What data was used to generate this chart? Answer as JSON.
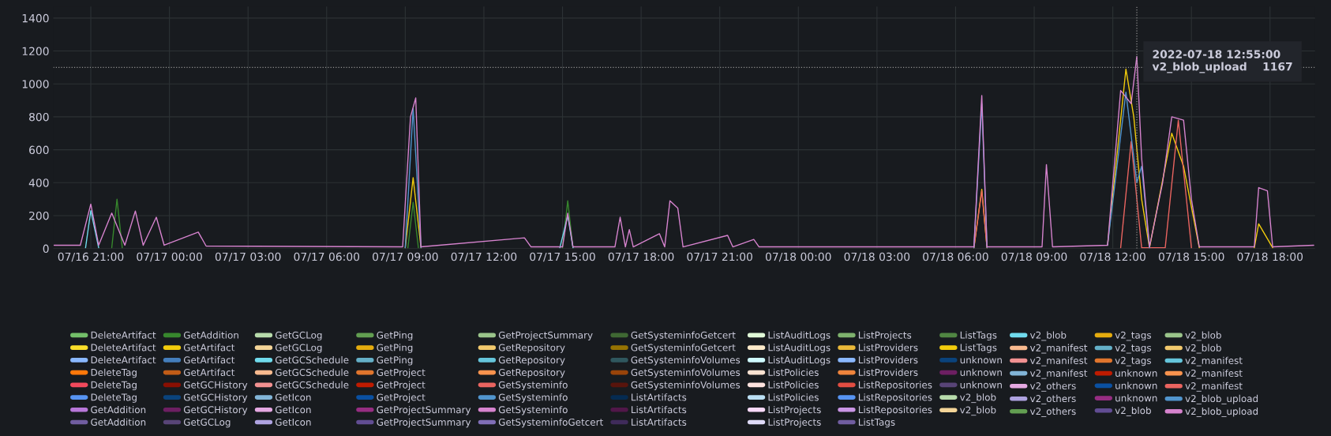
{
  "chart_data": {
    "type": "line",
    "xlim": [
      "2022-07-16T19:34",
      "2022-07-18T19:43"
    ],
    "xticks": [
      {
        "value": "2022-07-16T21:00",
        "label": "07/16 21:00"
      },
      {
        "value": "2022-07-17T00:00",
        "label": "07/17 00:00"
      },
      {
        "value": "2022-07-17T03:00",
        "label": "07/17 03:00"
      },
      {
        "value": "2022-07-17T06:00",
        "label": "07/17 06:00"
      },
      {
        "value": "2022-07-17T09:00",
        "label": "07/17 09:00"
      },
      {
        "value": "2022-07-17T12:00",
        "label": "07/17 12:00"
      },
      {
        "value": "2022-07-17T15:00",
        "label": "07/17 15:00"
      },
      {
        "value": "2022-07-17T18:00",
        "label": "07/17 18:00"
      },
      {
        "value": "2022-07-17T21:00",
        "label": "07/17 21:00"
      },
      {
        "value": "2022-07-18T00:00",
        "label": "07/18 00:00"
      },
      {
        "value": "2022-07-18T03:00",
        "label": "07/18 03:00"
      },
      {
        "value": "2022-07-18T06:00",
        "label": "07/18 06:00"
      },
      {
        "value": "2022-07-18T09:00",
        "label": "07/18 09:00"
      },
      {
        "value": "2022-07-18T12:00",
        "label": "07/18 12:00"
      },
      {
        "value": "2022-07-18T15:00",
        "label": "07/18 15:00"
      },
      {
        "value": "2022-07-18T18:00",
        "label": "07/18 18:00"
      }
    ],
    "ylim": [
      0,
      1470
    ],
    "yticks": [
      0,
      200,
      400,
      600,
      800,
      1000,
      1200,
      1400
    ],
    "grid": true,
    "legend": "bottom",
    "marker": "none",
    "line_style": "solid",
    "ref_lines": [
      {
        "axis": "y",
        "value": 1100,
        "color": "#8e8e8e",
        "line_style": "dotted"
      },
      {
        "axis": "x",
        "value": "2022-07-18T12:55",
        "color": "#8e8e8e",
        "line_style": "dotted"
      }
    ],
    "annotations": [
      {
        "text": "2022-07-18 12:55:00\nv2_blob_upload    1167",
        "x": "2022-07-18T12:55",
        "y": 1167
      }
    ],
    "series": [
      {
        "name": "DeleteArtifact",
        "color": "#73bf69",
        "values": [
          null
        ]
      },
      {
        "name": "DeleteArtifact",
        "color": "#fade2a",
        "values": [
          null
        ]
      },
      {
        "name": "DeleteArtifact",
        "color": "#8ab8ff",
        "values": [
          null
        ]
      },
      {
        "name": "DeleteTag",
        "color": "#ff780a",
        "values": [
          null
        ]
      },
      {
        "name": "DeleteTag",
        "color": "#f2495c",
        "values": [
          null
        ]
      },
      {
        "name": "DeleteTag",
        "color": "#5794f2",
        "values": [
          null
        ]
      },
      {
        "name": "GetAddition",
        "color": "#b877d9",
        "values": [
          null
        ]
      },
      {
        "name": "GetAddition",
        "color": "#705da0",
        "values": [
          null
        ]
      },
      {
        "name": "GetAddition",
        "color": "#37872d",
        "x": [
          "2022-07-16T21:48",
          "2022-07-16T22:00",
          "2022-07-16T22:12",
          "2022-07-17T03:00",
          "2022-07-17T09:06",
          "2022-07-17T09:18",
          "2022-07-17T09:30",
          "2022-07-17T12:00",
          "2022-07-17T15:00",
          "2022-07-17T15:12",
          "2022-07-17T15:24"
        ],
        "values": [
          5,
          300,
          5,
          null,
          5,
          280,
          5,
          null,
          5,
          290,
          5
        ]
      },
      {
        "name": "GetArtifact",
        "color": "#f2cc0c",
        "x": [
          "2022-07-17T09:00",
          "2022-07-17T09:18",
          "2022-07-17T09:36",
          "2022-07-17T12:00",
          "2022-07-18T06:42",
          "2022-07-18T07:00",
          "2022-07-18T07:12",
          "2022-07-18T09:00",
          "2022-07-18T11:48",
          "2022-07-18T12:30",
          "2022-07-18T12:48",
          "2022-07-18T13:06",
          "2022-07-18T13:24",
          "2022-07-18T14:15",
          "2022-07-18T14:42",
          "2022-07-18T15:18",
          "2022-07-18T16:00",
          "2022-07-18T17:24",
          "2022-07-18T17:34",
          "2022-07-18T18:06"
        ],
        "values": [
          5,
          430,
          5,
          null,
          5,
          360,
          5,
          null,
          20,
          1090,
          800,
          300,
          5,
          700,
          500,
          5,
          null,
          5,
          150,
          5
        ]
      },
      {
        "name": "GetArtifact",
        "color": "#447ebc",
        "values": [
          null
        ]
      },
      {
        "name": "GetArtifact",
        "color": "#c15c17",
        "values": [
          null
        ]
      },
      {
        "name": "GetGCHistory",
        "color": "#890f02",
        "values": [
          null
        ]
      },
      {
        "name": "GetGCHistory",
        "color": "#0a437c",
        "values": [
          null
        ]
      },
      {
        "name": "GetGCHistory",
        "color": "#6d1f62",
        "values": [
          null
        ]
      },
      {
        "name": "GetGCLog",
        "color": "#584477",
        "values": [
          null
        ]
      },
      {
        "name": "GetGCLog",
        "color": "#b7dbab",
        "values": [
          null
        ]
      },
      {
        "name": "GetGCLog",
        "color": "#f4d598",
        "values": [
          null
        ]
      },
      {
        "name": "GetGCSchedule",
        "color": "#70dbed",
        "x": [
          "2022-07-16T20:48",
          "2022-07-16T21:00",
          "2022-07-16T21:18",
          "2022-07-17T03:00",
          "2022-07-17T14:54",
          "2022-07-17T15:12",
          "2022-07-17T15:24"
        ],
        "values": [
          5,
          230,
          5,
          null,
          5,
          200,
          5
        ]
      },
      {
        "name": "GetGCSchedule",
        "color": "#f9ba8f",
        "values": [
          null
        ]
      },
      {
        "name": "GetGCSchedule",
        "color": "#f29191",
        "values": [
          null
        ]
      },
      {
        "name": "GetIcon",
        "color": "#82b5d8",
        "values": [
          null
        ]
      },
      {
        "name": "GetIcon",
        "color": "#e5a8e2",
        "values": [
          null
        ]
      },
      {
        "name": "GetIcon",
        "color": "#aea2e0",
        "values": [
          null
        ]
      },
      {
        "name": "GetPing",
        "color": "#629e51",
        "values": [
          null
        ]
      },
      {
        "name": "GetPing",
        "color": "#e5ac0e",
        "values": [
          null
        ]
      },
      {
        "name": "GetPing",
        "color": "#64b0c8",
        "values": [
          null
        ]
      },
      {
        "name": "GetProject",
        "color": "#e0752d",
        "values": [
          null
        ]
      },
      {
        "name": "GetProject",
        "color": "#bf1b00",
        "values": [
          null
        ]
      },
      {
        "name": "GetProject",
        "color": "#0a50a1",
        "values": [
          null
        ]
      },
      {
        "name": "GetProjectSummary",
        "color": "#962d82",
        "values": [
          null
        ]
      },
      {
        "name": "GetProjectSummary",
        "color": "#614d93",
        "values": [
          null
        ]
      },
      {
        "name": "GetProjectSummary",
        "color": "#9ac48a",
        "values": [
          null
        ]
      },
      {
        "name": "GetRepository",
        "color": "#f2c96d",
        "values": [
          null
        ]
      },
      {
        "name": "GetRepository",
        "color": "#65c5db",
        "values": [
          null
        ]
      },
      {
        "name": "GetRepository",
        "color": "#f9934e",
        "values": [
          null
        ]
      },
      {
        "name": "GetSysteminfo",
        "color": "#ea6460",
        "x": [
          "2022-07-18T06:42",
          "2022-07-18T07:00",
          "2022-07-18T07:12",
          "2022-07-18T09:00",
          "2022-07-18T12:18",
          "2022-07-18T12:42",
          "2022-07-18T13:06",
          "2022-07-18T14:00",
          "2022-07-18T14:30",
          "2022-07-18T15:00"
        ],
        "values": [
          5,
          350,
          5,
          null,
          5,
          650,
          5,
          5,
          780,
          5
        ]
      },
      {
        "name": "GetSysteminfo",
        "color": "#5195ce",
        "values": [
          null
        ]
      },
      {
        "name": "GetSysteminfo",
        "color": "#d683ce",
        "values": [
          null
        ]
      },
      {
        "name": "GetSysteminfoGetcert",
        "color": "#806eb7",
        "values": [
          null
        ]
      },
      {
        "name": "GetSysteminfoGetcert",
        "color": "#3f6833",
        "values": [
          null
        ]
      },
      {
        "name": "GetSysteminfoGetcert",
        "color": "#967302",
        "values": [
          null
        ]
      },
      {
        "name": "GetSysteminfoVolumes",
        "color": "#2f575e",
        "values": [
          null
        ]
      },
      {
        "name": "GetSysteminfoVolumes",
        "color": "#99440a",
        "values": [
          null
        ]
      },
      {
        "name": "GetSysteminfoVolumes",
        "color": "#58140c",
        "values": [
          null
        ]
      },
      {
        "name": "ListArtifacts",
        "color": "#052b51",
        "values": [
          null
        ]
      },
      {
        "name": "ListArtifacts",
        "color": "#511749",
        "values": [
          null
        ]
      },
      {
        "name": "ListArtifacts",
        "color": "#3f2b5b",
        "values": [
          null
        ]
      },
      {
        "name": "ListAuditLogs",
        "color": "#e0f9d7",
        "values": [
          null
        ]
      },
      {
        "name": "ListAuditLogs",
        "color": "#fceaca",
        "values": [
          null
        ]
      },
      {
        "name": "ListAuditLogs",
        "color": "#cffaff",
        "values": [
          null
        ]
      },
      {
        "name": "ListPolicies",
        "color": "#f9e2d2",
        "values": [
          null
        ]
      },
      {
        "name": "ListPolicies",
        "color": "#fce2de",
        "values": [
          null
        ]
      },
      {
        "name": "ListPolicies",
        "color": "#badff4",
        "values": [
          null
        ]
      },
      {
        "name": "ListProjects",
        "color": "#f9d9f9",
        "values": [
          null
        ]
      },
      {
        "name": "ListProjects",
        "color": "#dedaf7",
        "values": [
          null
        ]
      },
      {
        "name": "ListProjects",
        "color": "#7eb26d",
        "values": [
          null
        ]
      },
      {
        "name": "ListProviders",
        "color": "#eab839",
        "values": [
          null
        ]
      },
      {
        "name": "ListProviders",
        "color": "#8ab8ff",
        "values": [
          null
        ]
      },
      {
        "name": "ListProviders",
        "color": "#ef843c",
        "values": [
          null
        ]
      },
      {
        "name": "ListRepositories",
        "color": "#e24d42",
        "values": [
          null
        ]
      },
      {
        "name": "ListRepositories",
        "color": "#5794f2",
        "values": [
          null
        ]
      },
      {
        "name": "ListRepositories",
        "color": "#ca95e5",
        "values": [
          null
        ]
      },
      {
        "name": "ListTags",
        "color": "#705da0",
        "values": [
          null
        ]
      },
      {
        "name": "ListTags",
        "color": "#508642",
        "values": [
          null
        ]
      },
      {
        "name": "ListTags",
        "color": "#f2cc0c",
        "values": [
          null
        ]
      },
      {
        "values": [
          null
        ]
      },
      {
        "values": [
          null
        ]
      },
      {
        "values": [
          null
        ]
      },
      {
        "name": "unknown",
        "color": "#0a437c",
        "values": [
          null
        ]
      },
      {
        "name": "unknown",
        "color": "#6d1f62",
        "values": [
          null
        ]
      },
      {
        "name": "unknown",
        "color": "#584477",
        "values": [
          null
        ]
      },
      {
        "name": "v2_blob",
        "color": "#b7dbab",
        "values": [
          null
        ]
      },
      {
        "name": "v2_blob",
        "color": "#f4d598",
        "values": [
          null
        ]
      },
      {
        "name": "v2_blob",
        "color": "#70dbed",
        "values": [
          null
        ]
      },
      {
        "name": "v2_manifest",
        "color": "#f9ba8f",
        "values": [
          null
        ]
      },
      {
        "name": "v2_manifest",
        "color": "#f29191",
        "values": [
          null
        ]
      },
      {
        "name": "v2_manifest",
        "color": "#82b5d8",
        "values": [
          null
        ]
      },
      {
        "name": "v2_others",
        "color": "#e5a8e2",
        "values": [
          null
        ]
      },
      {
        "name": "v2_others",
        "color": "#aea2e0",
        "values": [
          null
        ]
      },
      {
        "name": "v2_others",
        "color": "#629e51",
        "values": [
          null
        ]
      },
      {
        "name": "v2_tags",
        "color": "#e5ac0e",
        "values": [
          null
        ]
      },
      {
        "name": "v2_tags",
        "color": "#64b0c8",
        "values": [
          null
        ]
      },
      {
        "name": "v2_tags",
        "color": "#e0752d",
        "values": [
          null
        ]
      },
      {
        "name": "unknown",
        "color": "#bf1b00",
        "values": [
          null
        ]
      },
      {
        "name": "unknown",
        "color": "#0a50a1",
        "values": [
          null
        ]
      },
      {
        "name": "unknown",
        "color": "#962d82",
        "values": [
          null
        ]
      },
      {
        "name": "v2_blob",
        "color": "#614d93",
        "values": [
          null
        ]
      },
      {
        "name": "v2_blob",
        "color": "#9ac48a",
        "values": [
          null
        ]
      },
      {
        "name": "v2_blob",
        "color": "#f2c96d",
        "values": [
          null
        ]
      },
      {
        "name": "v2_manifest",
        "color": "#65c5db",
        "values": [
          null
        ]
      },
      {
        "name": "v2_manifest",
        "color": "#f9934e",
        "values": [
          null
        ]
      },
      {
        "name": "v2_manifest",
        "color": "#ea6460",
        "values": [
          null
        ]
      },
      {
        "name": "v2_blob_upload",
        "color": "#5195ce",
        "x": [
          "2022-07-17T09:00",
          "2022-07-17T09:18",
          "2022-07-17T09:36",
          "2022-07-17T12:00",
          "2022-07-18T06:42",
          "2022-07-18T07:00",
          "2022-07-18T07:12",
          "2022-07-18T09:00",
          "2022-07-18T11:48",
          "2022-07-18T12:30",
          "2022-07-18T12:55",
          "2022-07-18T13:06",
          "2022-07-18T13:24"
        ],
        "values": [
          5,
          850,
          5,
          null,
          5,
          880,
          5,
          null,
          20,
          950,
          400,
          500,
          5
        ]
      },
      {
        "name": "v2_blob_upload",
        "color": "#d683ce",
        "x": [
          "2022-07-16T19:36",
          "2022-07-16T20:36",
          "2022-07-16T21:00",
          "2022-07-16T21:18",
          "2022-07-16T21:48",
          "2022-07-16T22:18",
          "2022-07-16T22:42",
          "2022-07-16T23:00",
          "2022-07-16T23:30",
          "2022-07-16T23:48",
          "2022-07-17T01:06",
          "2022-07-17T01:24",
          "2022-07-17T08:54",
          "2022-07-17T09:12",
          "2022-07-17T09:24",
          "2022-07-17T09:36",
          "2022-07-17T13:33",
          "2022-07-17T13:48",
          "2022-07-17T15:00",
          "2022-07-17T15:12",
          "2022-07-17T15:24",
          "2022-07-17T17:00",
          "2022-07-17T17:12",
          "2022-07-17T17:24",
          "2022-07-17T17:33",
          "2022-07-17T17:42",
          "2022-07-17T18:42",
          "2022-07-17T18:54",
          "2022-07-17T19:06",
          "2022-07-17T19:24",
          "2022-07-17T19:36",
          "2022-07-17T21:18",
          "2022-07-17T21:30",
          "2022-07-17T22:18",
          "2022-07-17T22:30",
          "2022-07-18T06:42",
          "2022-07-18T07:00",
          "2022-07-18T07:12",
          "2022-07-18T09:18",
          "2022-07-18T09:28",
          "2022-07-18T09:42",
          "2022-07-18T11:48",
          "2022-07-18T12:18",
          "2022-07-18T12:42",
          "2022-07-18T12:55",
          "2022-07-18T13:06",
          "2022-07-18T13:24",
          "2022-07-18T13:54",
          "2022-07-18T14:15",
          "2022-07-18T14:42",
          "2022-07-18T15:00",
          "2022-07-18T15:18",
          "2022-07-18T17:24",
          "2022-07-18T17:34",
          "2022-07-18T17:54",
          "2022-07-18T18:06",
          "2022-07-18T19:40"
        ],
        "values": [
          20,
          20,
          270,
          20,
          215,
          20,
          228,
          20,
          190,
          20,
          100,
          15,
          10,
          800,
          915,
          10,
          65,
          10,
          10,
          215,
          10,
          10,
          190,
          10,
          115,
          10,
          90,
          10,
          290,
          245,
          10,
          80,
          10,
          55,
          10,
          10,
          930,
          10,
          10,
          510,
          10,
          20,
          960,
          880,
          1167,
          550,
          10,
          400,
          800,
          780,
          300,
          10,
          10,
          370,
          350,
          10,
          20
        ]
      }
    ]
  }
}
